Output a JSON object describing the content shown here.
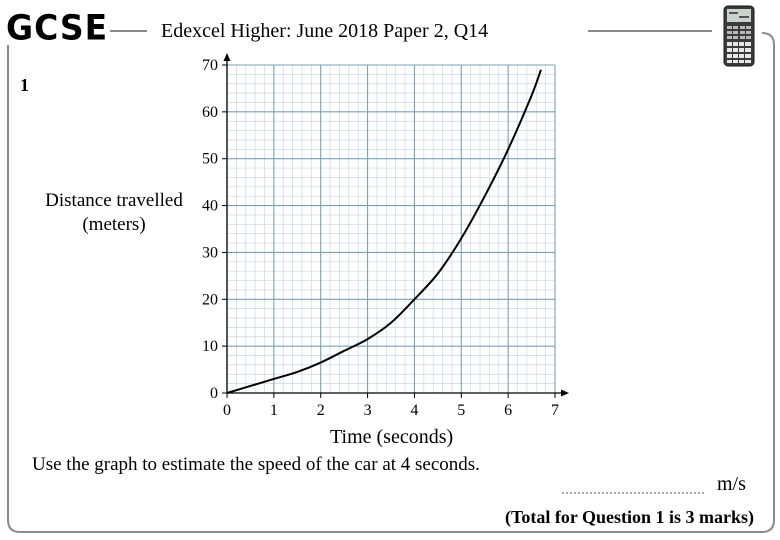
{
  "header": {
    "logo": "GCSE",
    "title": "Edexcel Higher: June 2018 Paper 2, Q14",
    "calculator_icon": "calculator-icon"
  },
  "question": {
    "number": "1",
    "text": "Use the graph to estimate the speed of the car at 4 seconds.",
    "answer_units": "m/s",
    "total_marks": "(Total for Question 1 is 3 marks)"
  },
  "chart_data": {
    "type": "line",
    "title": "",
    "xlabel": "Time  (seconds)",
    "ylabel_lines": [
      "Distance travelled",
      "(meters)"
    ],
    "xlim": [
      0,
      7
    ],
    "ylim": [
      0,
      70
    ],
    "x_ticks": [
      0,
      1,
      2,
      3,
      4,
      5,
      6,
      7
    ],
    "y_ticks": [
      0,
      10,
      20,
      30,
      40,
      50,
      60,
      70
    ],
    "x_minor_per_unit": 5,
    "y_minor_per_unit": 5,
    "grid": true,
    "series": [
      {
        "x": [
          0,
          0.5,
          1,
          1.5,
          2,
          2.5,
          3,
          3.5,
          4,
          4.5,
          5,
          5.5,
          6,
          6.5,
          6.7
        ],
        "y": [
          0,
          1.5,
          3,
          4.5,
          6.5,
          9,
          11.5,
          15,
          20,
          25.5,
          33,
          42,
          52,
          63.5,
          69
        ]
      }
    ]
  }
}
